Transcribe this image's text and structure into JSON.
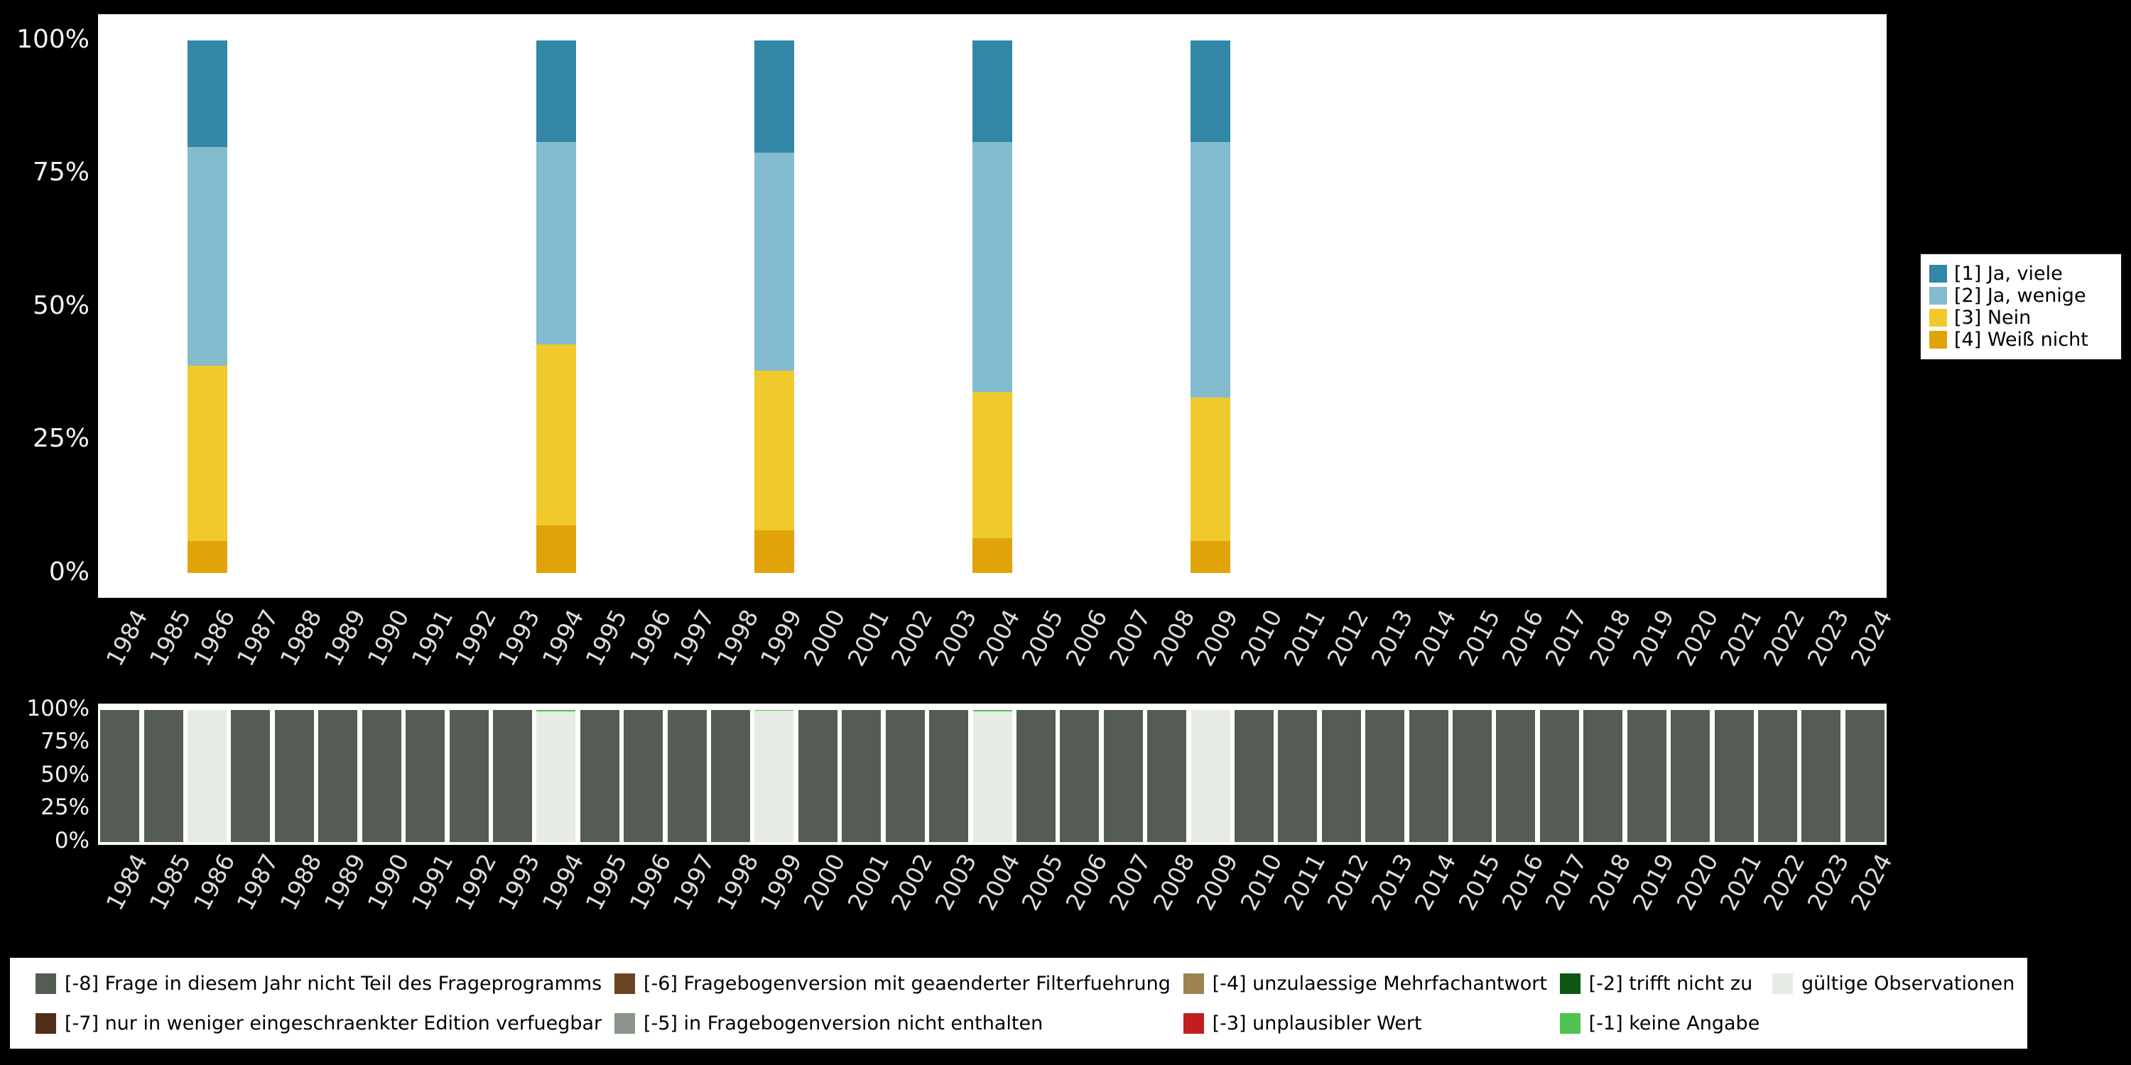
{
  "figure": {
    "background": "#000000",
    "plot_background": "#ffffff",
    "axis_text_color": "#dcdcdc",
    "tick_text_color": "#f2f2f2"
  },
  "chart_data": [
    {
      "type": "bar",
      "stacked": true,
      "orientation": "vertical",
      "title": "",
      "xlabel": "",
      "ylabel": "",
      "ylim": [
        0,
        100
      ],
      "yticks": [
        "100%",
        "75%",
        "50%",
        "25%",
        "0%"
      ],
      "legend_position": "right",
      "x": [
        "1984",
        "1985",
        "1986",
        "1987",
        "1988",
        "1989",
        "1990",
        "1991",
        "1992",
        "1993",
        "1994",
        "1995",
        "1996",
        "1997",
        "1998",
        "1999",
        "2000",
        "2001",
        "2002",
        "2003",
        "2004",
        "2005",
        "2006",
        "2007",
        "2008",
        "2009",
        "2010",
        "2011",
        "2012",
        "2013",
        "2014",
        "2015",
        "2016",
        "2017",
        "2018",
        "2019",
        "2020",
        "2021",
        "2022",
        "2023",
        "2024"
      ],
      "series": [
        {
          "name": "[1] Ja, viele",
          "color": "#3187a5",
          "values": {
            "1986": 20,
            "1994": 19,
            "1999": 21,
            "2004": 19,
            "2009": 19
          }
        },
        {
          "name": "[2] Ja, wenige",
          "color": "#82bcce",
          "values": {
            "1986": 41,
            "1994": 38,
            "1999": 41,
            "2004": 47,
            "2009": 48
          }
        },
        {
          "name": "[3] Nein",
          "color": "#f0c92c",
          "values": {
            "1986": 33,
            "1994": 34,
            "1999": 30,
            "2004": 27.5,
            "2009": 27
          }
        },
        {
          "name": "[4] Weiß nicht",
          "color": "#e0a408",
          "values": {
            "1986": 6,
            "1994": 9,
            "1999": 8,
            "2004": 6.5,
            "2009": 6
          }
        }
      ]
    },
    {
      "type": "bar",
      "stacked": true,
      "orientation": "vertical",
      "title": "",
      "ylim": [
        0,
        100
      ],
      "yticks": [
        "100%",
        "75%",
        "50%",
        "25%",
        "0%"
      ],
      "x": [
        "1984",
        "1985",
        "1986",
        "1987",
        "1988",
        "1989",
        "1990",
        "1991",
        "1992",
        "1993",
        "1994",
        "1995",
        "1996",
        "1997",
        "1998",
        "1999",
        "2000",
        "2001",
        "2002",
        "2003",
        "2004",
        "2005",
        "2006",
        "2007",
        "2008",
        "2009",
        "2010",
        "2011",
        "2012",
        "2013",
        "2014",
        "2015",
        "2016",
        "2017",
        "2018",
        "2019",
        "2020",
        "2021",
        "2022",
        "2023",
        "2024"
      ],
      "series": [
        {
          "name": "gültige Observationen",
          "color": "#e6ece4",
          "values": {
            "1986": 100,
            "1994": 99,
            "1999": 99.5,
            "2004": 99,
            "2009": 100
          }
        },
        {
          "name": "[-1] keine Angabe",
          "color": "#4fc24f",
          "values": {
            "1994": 1,
            "1999": 0.5,
            "2004": 1
          }
        },
        {
          "name": "[-8] Frage in diesem Jahr nicht Teil des Frageprogramms",
          "color": "#545c54",
          "values": {
            "1984": 100,
            "1985": 100,
            "1987": 100,
            "1988": 100,
            "1989": 100,
            "1990": 100,
            "1991": 100,
            "1992": 100,
            "1993": 100,
            "1995": 100,
            "1996": 100,
            "1997": 100,
            "1998": 100,
            "2000": 100,
            "2001": 100,
            "2002": 100,
            "2003": 100,
            "2005": 100,
            "2006": 100,
            "2007": 100,
            "2008": 100,
            "2010": 100,
            "2011": 100,
            "2012": 100,
            "2013": 100,
            "2014": 100,
            "2015": 100,
            "2016": 100,
            "2017": 100,
            "2018": 100,
            "2019": 100,
            "2020": 100,
            "2021": 100,
            "2022": 100,
            "2023": 100,
            "2024": 100
          }
        }
      ]
    }
  ],
  "missing_legend": {
    "items": [
      {
        "label": "[-8] Frage in diesem Jahr nicht Teil des Frageprogramms",
        "color": "#545c54"
      },
      {
        "label": "[-7] nur in weniger eingeschraenkter Edition verfuegbar",
        "color": "#502f16"
      },
      {
        "label": "[-6] Fragebogenversion mit geaenderter Filterfuehrung",
        "color": "#6b4423"
      },
      {
        "label": "[-5] in Fragebogenversion nicht enthalten",
        "color": "#8a948a"
      },
      {
        "label": "[-4] unzulaessige Mehrfachantwort",
        "color": "#9d8252"
      },
      {
        "label": "[-3] unplausibler Wert",
        "color": "#c01f1f"
      },
      {
        "label": "[-2] trifft nicht zu",
        "color": "#0f5715"
      },
      {
        "label": "[-1] keine Angabe",
        "color": "#4fc24f"
      },
      {
        "label": "gültige Observationen",
        "color": "#e6ece4"
      }
    ]
  }
}
